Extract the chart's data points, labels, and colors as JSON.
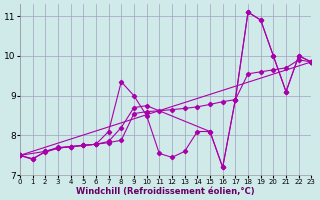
{
  "xlabel": "Windchill (Refroidissement éolien,°C)",
  "bg_color": "#d0eaea",
  "grid_color": "#a0a0c0",
  "line_color": "#aa00aa",
  "xlim": [
    0,
    23
  ],
  "ylim": [
    7,
    11.3
  ],
  "yticks": [
    7,
    8,
    9,
    10,
    11
  ],
  "xticks": [
    0,
    1,
    2,
    3,
    4,
    5,
    6,
    7,
    8,
    9,
    10,
    11,
    12,
    13,
    14,
    15,
    16,
    17,
    18,
    19,
    20,
    21,
    22,
    23
  ],
  "series": [
    {
      "x": [
        0,
        1,
        2,
        3,
        4,
        5,
        6,
        7,
        8,
        9,
        10,
        11,
        12,
        13,
        14,
        15,
        16,
        17,
        18,
        19,
        20,
        21,
        22,
        23
      ],
      "y": [
        7.5,
        7.4,
        7.6,
        7.7,
        7.72,
        7.75,
        7.78,
        8.1,
        9.35,
        9.0,
        8.5,
        7.55,
        7.45,
        7.6,
        8.1,
        8.1,
        7.2,
        8.9,
        11.1,
        10.9,
        10.0,
        9.1,
        10.0,
        9.85
      ]
    },
    {
      "x": [
        0,
        1,
        2,
        3,
        4,
        5,
        6,
        7,
        8,
        9,
        10,
        11,
        12,
        13,
        14,
        15,
        16,
        17,
        18,
        19,
        20,
        21,
        22,
        23
      ],
      "y": [
        7.5,
        7.42,
        7.58,
        7.68,
        7.72,
        7.75,
        7.78,
        7.82,
        7.88,
        8.55,
        8.6,
        8.62,
        8.65,
        8.68,
        8.72,
        8.78,
        8.85,
        8.9,
        9.55,
        9.6,
        9.65,
        9.7,
        9.9,
        9.85
      ]
    },
    {
      "x": [
        0,
        2,
        3,
        4,
        5,
        6,
        7,
        8,
        9,
        10,
        15,
        16,
        17,
        18,
        19,
        20,
        21,
        22,
        23
      ],
      "y": [
        7.5,
        7.6,
        7.68,
        7.72,
        7.75,
        7.78,
        7.85,
        8.2,
        8.7,
        8.75,
        8.1,
        7.2,
        8.9,
        11.1,
        10.9,
        10.0,
        9.1,
        10.0,
        9.85
      ]
    },
    {
      "x": [
        0,
        23
      ],
      "y": [
        7.5,
        9.85
      ]
    }
  ]
}
